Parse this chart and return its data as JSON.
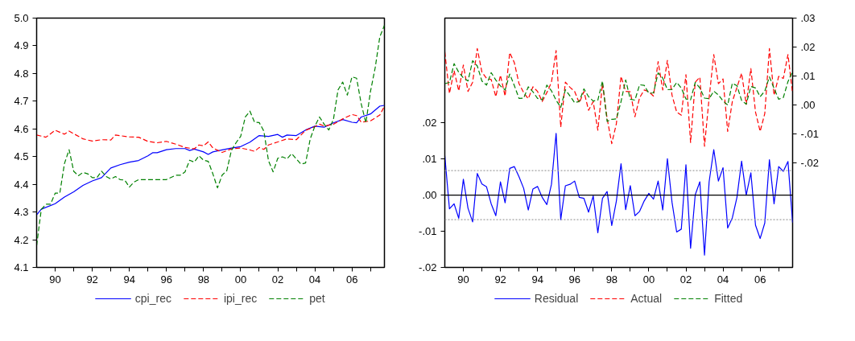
{
  "chart_data": [
    {
      "type": "line",
      "xlim": [
        1989,
        2007.75
      ],
      "ylim": [
        4.1,
        5.0
      ],
      "xticks": [
        {
          "value": 1990,
          "label": "90"
        },
        {
          "value": 1991,
          "label": null
        },
        {
          "value": 1992,
          "label": "92"
        },
        {
          "value": 1993,
          "label": null
        },
        {
          "value": 1994,
          "label": "94"
        },
        {
          "value": 1995,
          "label": null
        },
        {
          "value": 1996,
          "label": "96"
        },
        {
          "value": 1997,
          "label": null
        },
        {
          "value": 1998,
          "label": "98"
        },
        {
          "value": 1999,
          "label": null
        },
        {
          "value": 2000,
          "label": "00"
        },
        {
          "value": 2001,
          "label": null
        },
        {
          "value": 2002,
          "label": "02"
        },
        {
          "value": 2003,
          "label": null
        },
        {
          "value": 2004,
          "label": "04"
        },
        {
          "value": 2005,
          "label": null
        },
        {
          "value": 2006,
          "label": "06"
        },
        {
          "value": 2007,
          "label": null
        }
      ],
      "yticks": [
        4.1,
        4.2,
        4.3,
        4.4,
        4.5,
        4.6,
        4.7,
        4.8,
        4.9,
        {
          "value": 5.0,
          "label": "5.0"
        }
      ],
      "grid": false,
      "legend": "bottom",
      "series": [
        {
          "name": "cpi_rec",
          "color": "#0000ff",
          "line_style": "solid",
          "x": [
            1989,
            1989.25,
            1990,
            1990.5,
            1991,
            1991.5,
            1992,
            1992.5,
            1993,
            1993.5,
            1994,
            1994.5,
            1995,
            1995.25,
            1995.5,
            1996,
            1996.5,
            1997,
            1997.25,
            1997.5,
            1998,
            1998.25,
            1998.5,
            1999,
            1999.5,
            2000,
            2000.5,
            2001,
            2001.5,
            2002,
            2002.25,
            2002.5,
            2003,
            2003.5,
            2004,
            2004.5,
            2005,
            2005.5,
            2006,
            2006.25,
            2006.5,
            2007,
            2007.5,
            2007.75
          ],
          "values": [
            4.29,
            4.31,
            4.33,
            4.354,
            4.373,
            4.396,
            4.412,
            4.424,
            4.459,
            4.471,
            4.48,
            4.486,
            4.503,
            4.514,
            4.514,
            4.525,
            4.529,
            4.529,
            4.522,
            4.527,
            4.517,
            4.508,
            4.517,
            4.524,
            4.531,
            4.536,
            4.552,
            4.576,
            4.573,
            4.58,
            4.57,
            4.578,
            4.576,
            4.596,
            4.61,
            4.606,
            4.622,
            4.634,
            4.624,
            4.622,
            4.643,
            4.654,
            4.682,
            4.685
          ]
        },
        {
          "name": "ipi_rec",
          "color": "#ff0000",
          "line_style": "dashed",
          "x": [
            1989,
            1989.5,
            1990,
            1990.5,
            1990.75,
            1991.5,
            1992,
            1992.5,
            1993,
            1993.25,
            1994,
            1994.5,
            1995,
            1995.5,
            1996,
            1996.5,
            1997,
            1997.5,
            1997.75,
            1998,
            1998.25,
            1998.5,
            1999,
            1999.5,
            2000,
            2000.5,
            2000.75,
            2001,
            2001.25,
            2001.5,
            2002,
            2002.5,
            2003,
            2003.5,
            2004,
            2004.25,
            2004.5,
            2005,
            2005.5,
            2006,
            2006.25,
            2006.5,
            2007,
            2007.5,
            2007.75
          ],
          "values": [
            4.578,
            4.57,
            4.595,
            4.581,
            4.592,
            4.564,
            4.556,
            4.561,
            4.56,
            4.578,
            4.571,
            4.57,
            4.555,
            4.55,
            4.555,
            4.545,
            4.533,
            4.528,
            4.542,
            4.539,
            4.553,
            4.531,
            4.515,
            4.528,
            4.531,
            4.524,
            4.519,
            4.533,
            4.526,
            4.542,
            4.553,
            4.564,
            4.561,
            4.595,
            4.608,
            4.617,
            4.61,
            4.617,
            4.636,
            4.652,
            4.648,
            4.624,
            4.629,
            4.65,
            4.682
          ]
        },
        {
          "name": "pet",
          "color": "#008000",
          "line_style": "dashed",
          "x": [
            1989,
            1989.25,
            1989.5,
            1989.75,
            1990,
            1990.25,
            1990.5,
            1990.75,
            1991,
            1991.25,
            1991.5,
            1991.75,
            1992,
            1992.25,
            1992.5,
            1992.75,
            1993,
            1993.25,
            1993.5,
            1993.75,
            1994,
            1994.25,
            1994.5,
            1996,
            1996.5,
            1996.75,
            1997,
            1997.25,
            1997.5,
            1997.75,
            1998,
            1998.25,
            1998.5,
            1998.75,
            1999,
            1999.25,
            1999.5,
            1999.75,
            2000,
            2000.25,
            2000.5,
            2000.75,
            2001,
            2001.25,
            2001.5,
            2001.75,
            2002,
            2002.25,
            2002.5,
            2002.75,
            2003,
            2003.25,
            2003.5,
            2003.75,
            2004,
            2004.25,
            2004.5,
            2004.75,
            2005,
            2005.25,
            2005.5,
            2005.75,
            2006,
            2006.25,
            2006.5,
            2006.75,
            2007,
            2007.25,
            2007.5,
            2007.75
          ],
          "values": [
            4.179,
            4.309,
            4.328,
            4.328,
            4.368,
            4.368,
            4.475,
            4.525,
            4.447,
            4.431,
            4.443,
            4.438,
            4.424,
            4.424,
            4.447,
            4.428,
            4.419,
            4.428,
            4.417,
            4.415,
            4.39,
            4.408,
            4.417,
            4.417,
            4.433,
            4.433,
            4.445,
            4.487,
            4.48,
            4.503,
            4.487,
            4.483,
            4.438,
            4.387,
            4.433,
            4.449,
            4.522,
            4.55,
            4.573,
            4.643,
            4.664,
            4.624,
            4.623,
            4.592,
            4.485,
            4.445,
            4.494,
            4.499,
            4.492,
            4.511,
            4.492,
            4.473,
            4.477,
            4.564,
            4.61,
            4.643,
            4.617,
            4.596,
            4.634,
            4.741,
            4.769,
            4.722,
            4.788,
            4.783,
            4.69,
            4.622,
            4.736,
            4.82,
            4.932,
            4.974
          ]
        }
      ]
    },
    {
      "type": "line",
      "xlim": [
        1989,
        2007.75
      ],
      "ylim": [
        -0.02,
        0.049
      ],
      "y2lim": [
        -0.056,
        0.03
      ],
      "xticks": [
        {
          "value": 1990,
          "label": "90"
        },
        {
          "value": 1991,
          "label": null
        },
        {
          "value": 1992,
          "label": "92"
        },
        {
          "value": 1993,
          "label": null
        },
        {
          "value": 1994,
          "label": "94"
        },
        {
          "value": 1995,
          "label": null
        },
        {
          "value": 1996,
          "label": "96"
        },
        {
          "value": 1997,
          "label": null
        },
        {
          "value": 1998,
          "label": "98"
        },
        {
          "value": 1999,
          "label": null
        },
        {
          "value": 2000,
          "label": "00"
        },
        {
          "value": 2001,
          "label": null
        },
        {
          "value": 2002,
          "label": "02"
        },
        {
          "value": 2003,
          "label": null
        },
        {
          "value": 2004,
          "label": "04"
        },
        {
          "value": 2005,
          "label": null
        },
        {
          "value": 2006,
          "label": "06"
        },
        {
          "value": 2007,
          "label": null
        }
      ],
      "yticks": [
        {
          "value": -0.02,
          "label": "-.02"
        },
        {
          "value": -0.01,
          "label": "-.01"
        },
        {
          "value": 0,
          "label": ".00"
        },
        {
          "value": 0.01,
          "label": ".01"
        },
        {
          "value": 0.02,
          "label": ".02"
        }
      ],
      "y2ticks": [
        {
          "value": -0.02,
          "label": "-.02"
        },
        {
          "value": -0.01,
          "label": "-.01"
        },
        {
          "value": 0,
          "label": ".00"
        },
        {
          "value": 0.01,
          "label": ".01"
        },
        {
          "value": 0.02,
          "label": ".02"
        },
        {
          "value": 0.03,
          "label": ".03"
        }
      ],
      "grid": false,
      "legend": "bottom",
      "ref_lines": [
        {
          "axis": "y",
          "value": 0,
          "color": "#000000",
          "line_style": "solid"
        },
        {
          "axis": "y",
          "value": 0.0068,
          "color": "#a0a0a0",
          "line_style": "dotted"
        },
        {
          "axis": "y",
          "value": -0.0068,
          "color": "#a0a0a0",
          "line_style": "dotted"
        }
      ],
      "x": [
        1989,
        1989.25,
        1989.5,
        1989.75,
        1990,
        1990.25,
        1990.5,
        1990.75,
        1991,
        1991.25,
        1991.5,
        1991.75,
        1992,
        1992.25,
        1992.5,
        1992.75,
        1993,
        1993.25,
        1993.5,
        1993.75,
        1994,
        1994.25,
        1994.5,
        1994.75,
        1995,
        1995.25,
        1995.5,
        1995.75,
        1996,
        1996.25,
        1996.5,
        1996.75,
        1997,
        1997.25,
        1997.5,
        1997.75,
        1998,
        1998.25,
        1998.5,
        1998.75,
        1999,
        1999.25,
        1999.5,
        1999.75,
        2000,
        2000.25,
        2000.5,
        2000.75,
        2001,
        2001.25,
        2001.5,
        2001.75,
        2002,
        2002.25,
        2002.5,
        2002.75,
        2003,
        2003.25,
        2003.5,
        2003.75,
        2004,
        2004.25,
        2004.5,
        2004.75,
        2005,
        2005.25,
        2005.5,
        2005.75,
        2006,
        2006.25,
        2006.5,
        2006.75,
        2007,
        2007.25,
        2007.5,
        2007.75
      ],
      "series": [
        {
          "name": "Residual",
          "color": "#0000ff",
          "line_style": "solid",
          "values": [
            0.0109,
            -0.0038,
            -0.0024,
            -0.0064,
            0.0044,
            -0.0036,
            -0.0074,
            0.006,
            0.0031,
            0.0023,
            -0.0024,
            -0.0057,
            0.0037,
            -0.0021,
            0.0074,
            0.0079,
            0.0051,
            0.0019,
            -0.0041,
            0.0017,
            0.0024,
            -0.0006,
            -0.0026,
            0.003,
            0.0171,
            -0.0068,
            0.0026,
            0.003,
            0.0039,
            -0.0006,
            -0.0009,
            -0.0047,
            -0.0002,
            -0.0104,
            -0.0009,
            0.001,
            -0.0084,
            -0.0016,
            0.0087,
            -0.004,
            0.0026,
            -0.0057,
            -0.0045,
            -0.0016,
            0.0005,
            -0.0011,
            0.0039,
            -0.0041,
            0.0101,
            -0.002,
            -0.0102,
            -0.0094,
            0.0084,
            -0.0147,
            0.0001,
            0.0037,
            -0.0166,
            0.0037,
            0.0126,
            0.0039,
            0.0076,
            -0.0091,
            -0.0063,
            -0.0006,
            0.0094,
            0.0,
            0.0062,
            -0.0083,
            -0.012,
            -0.0077,
            0.0098,
            -0.0024,
            0.0079,
            0.0066,
            0.0093,
            -0.0076
          ]
        },
        {
          "name": "Actual",
          "color": "#ff0000",
          "line_style": "dashed",
          "axis": "y2",
          "values": [
            0.0183,
            0.004,
            0.0119,
            0.0049,
            0.0138,
            0.0047,
            0.0079,
            0.0195,
            0.0114,
            0.0092,
            0.0088,
            0.0029,
            0.0103,
            0.0031,
            0.0181,
            0.0146,
            0.0074,
            0.0043,
            0.0022,
            0.0063,
            0.0047,
            0.0012,
            0.0043,
            0.0079,
            0.0188,
            -0.0076,
            0.0079,
            0.0061,
            0.0047,
            0.0007,
            0.0047,
            -0.0018,
            0.0012,
            -0.0087,
            0.0074,
            -0.0046,
            -0.0133,
            -0.0064,
            0.0099,
            0.0047,
            0.0046,
            -0.004,
            0.0025,
            0.0052,
            0.0046,
            0.0031,
            0.015,
            0.0052,
            0.0154,
            0.0034,
            -0.0024,
            -0.0035,
            0.0105,
            -0.0129,
            0.0079,
            0.0096,
            -0.0142,
            0.0025,
            0.0174,
            0.0074,
            0.009,
            -0.0091,
            0.0012,
            0.0061,
            0.011,
            0.0003,
            0.0126,
            -0.0024,
            -0.0091,
            -0.0029,
            0.0195,
            0.0034,
            0.0099,
            0.0092,
            0.0174,
            0.004
          ]
        },
        {
          "name": "Fitted",
          "color": "#008000",
          "line_style": "dashed",
          "axis": "y2",
          "values": [
            0.0074,
            0.0078,
            0.0143,
            0.0113,
            0.0094,
            0.0083,
            0.0153,
            0.0135,
            0.0083,
            0.0069,
            0.0112,
            0.0086,
            0.0066,
            0.0052,
            0.0107,
            0.0067,
            0.0023,
            0.0024,
            0.0063,
            0.0046,
            0.0023,
            0.0018,
            0.0069,
            0.0049,
            0.0017,
            -0.0008,
            0.0053,
            0.0031,
            0.0008,
            0.0013,
            0.0056,
            0.0029,
            0.0014,
            0.0017,
            0.0083,
            -0.0056,
            -0.0049,
            -0.0048,
            0.0012,
            0.0087,
            0.002,
            0.0017,
            0.007,
            0.0068,
            0.0041,
            0.0042,
            0.0111,
            0.0093,
            0.0053,
            0.0054,
            0.0078,
            0.0059,
            0.0021,
            0.0018,
            0.0078,
            0.0059,
            0.0024,
            0.0022,
            0.0048,
            0.0035,
            0.0014,
            0.0,
            0.0075,
            0.0067,
            0.0016,
            0.0003,
            0.0064,
            0.0059,
            0.0029,
            0.0048,
            0.0097,
            0.0058,
            0.002,
            0.0026,
            0.0081,
            0.0116
          ]
        }
      ]
    }
  ]
}
